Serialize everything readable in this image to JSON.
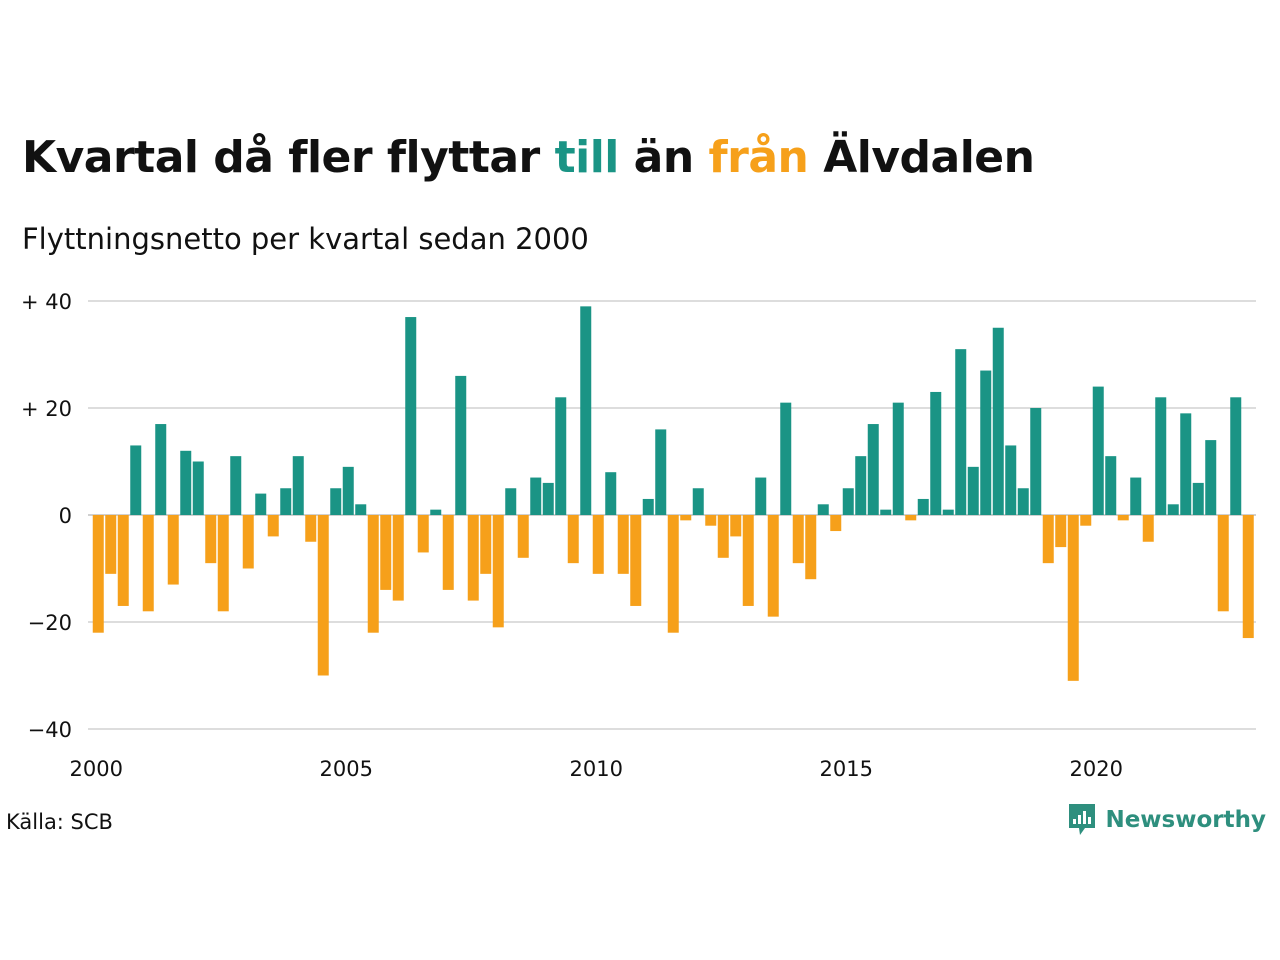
{
  "title": {
    "part1": "Kvartal då fler flyttar ",
    "highlight_in": "till",
    "part2": " än ",
    "highlight_out": "från",
    "part3": " Älvdalen"
  },
  "subtitle": "Flyttningsnetto per kvartal sedan 2000",
  "source": "Källa: SCB",
  "brand": {
    "name": "Newsworthy",
    "icon": "newsworthy-logo-icon"
  },
  "colors": {
    "positive": "#1a9485",
    "negative": "#f6a01a",
    "grid": "#dddddd",
    "text": "#111111"
  },
  "chart_data": {
    "type": "bar",
    "title": "Kvartal då fler flyttar till än från Älvdalen",
    "subtitle": "Flyttningsnetto per kvartal sedan 2000",
    "x_start": "2000-Q1",
    "x_tick_labels": [
      "2000",
      "2005",
      "2010",
      "2015",
      "2020"
    ],
    "y_tick_labels": [
      "+ 40",
      "+ 20",
      "0",
      "−20",
      "−40"
    ],
    "y_ticks": [
      40,
      20,
      0,
      -20,
      -40
    ],
    "ylim": [
      -40,
      40
    ],
    "grid": true,
    "values": [
      -22,
      -11,
      -17,
      13,
      -18,
      17,
      -13,
      12,
      10,
      -9,
      -18,
      11,
      -10,
      4,
      -4,
      5,
      11,
      -5,
      -30,
      5,
      9,
      2,
      -22,
      -14,
      -16,
      37,
      -7,
      1,
      -14,
      26,
      -16,
      -11,
      -21,
      5,
      -8,
      7,
      6,
      22,
      -9,
      39,
      -11,
      8,
      -11,
      -17,
      3,
      16,
      -22,
      -1,
      5,
      -2,
      -8,
      -4,
      -17,
      7,
      -19,
      21,
      -9,
      -12,
      2,
      -3,
      5,
      11,
      17,
      1,
      21,
      -1,
      3,
      23,
      1,
      31,
      9,
      27,
      35,
      13,
      5,
      20,
      -9,
      -6,
      -31,
      -2,
      24,
      11,
      -1,
      7,
      -5,
      22,
      2,
      19,
      6,
      14,
      -18,
      22,
      -23
    ]
  }
}
